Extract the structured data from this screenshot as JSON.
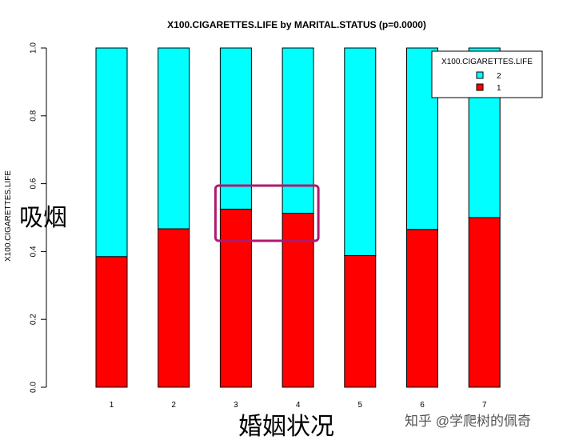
{
  "chart_data": {
    "type": "bar",
    "stacked": true,
    "title": "X100.CIGARETTES.LIFE by MARITAL.STATUS (p=0.0000)",
    "xlabel": "",
    "ylabel": "X100.CIGARETTES.LIFE",
    "ylim": [
      0,
      1
    ],
    "yticks": [
      "0.0",
      "0.2",
      "0.4",
      "0.6",
      "0.8",
      "1.0"
    ],
    "categories": [
      "1",
      "2",
      "3",
      "4",
      "5",
      "6",
      "7"
    ],
    "series": [
      {
        "name": "1",
        "color": "#ff0000",
        "values": [
          0.385,
          0.467,
          0.525,
          0.513,
          0.388,
          0.465,
          0.5
        ]
      },
      {
        "name": "2",
        "color": "#00ffff",
        "values": [
          0.615,
          0.533,
          0.475,
          0.487,
          0.612,
          0.535,
          0.5
        ]
      }
    ],
    "legend": {
      "title": "X100.CIGARETTES.LIFE",
      "position": "top-right",
      "entries": [
        {
          "label": "2",
          "color": "#00ffff"
        },
        {
          "label": "1",
          "color": "#ff0000"
        }
      ]
    },
    "annotations": {
      "y_overlay": "吸烟",
      "x_overlay": "婚姻状况",
      "highlight_categories": [
        "3",
        "4"
      ],
      "highlight_color": "#b0196e"
    },
    "grid": false
  },
  "watermark": "知乎 @学爬树的佩奇"
}
